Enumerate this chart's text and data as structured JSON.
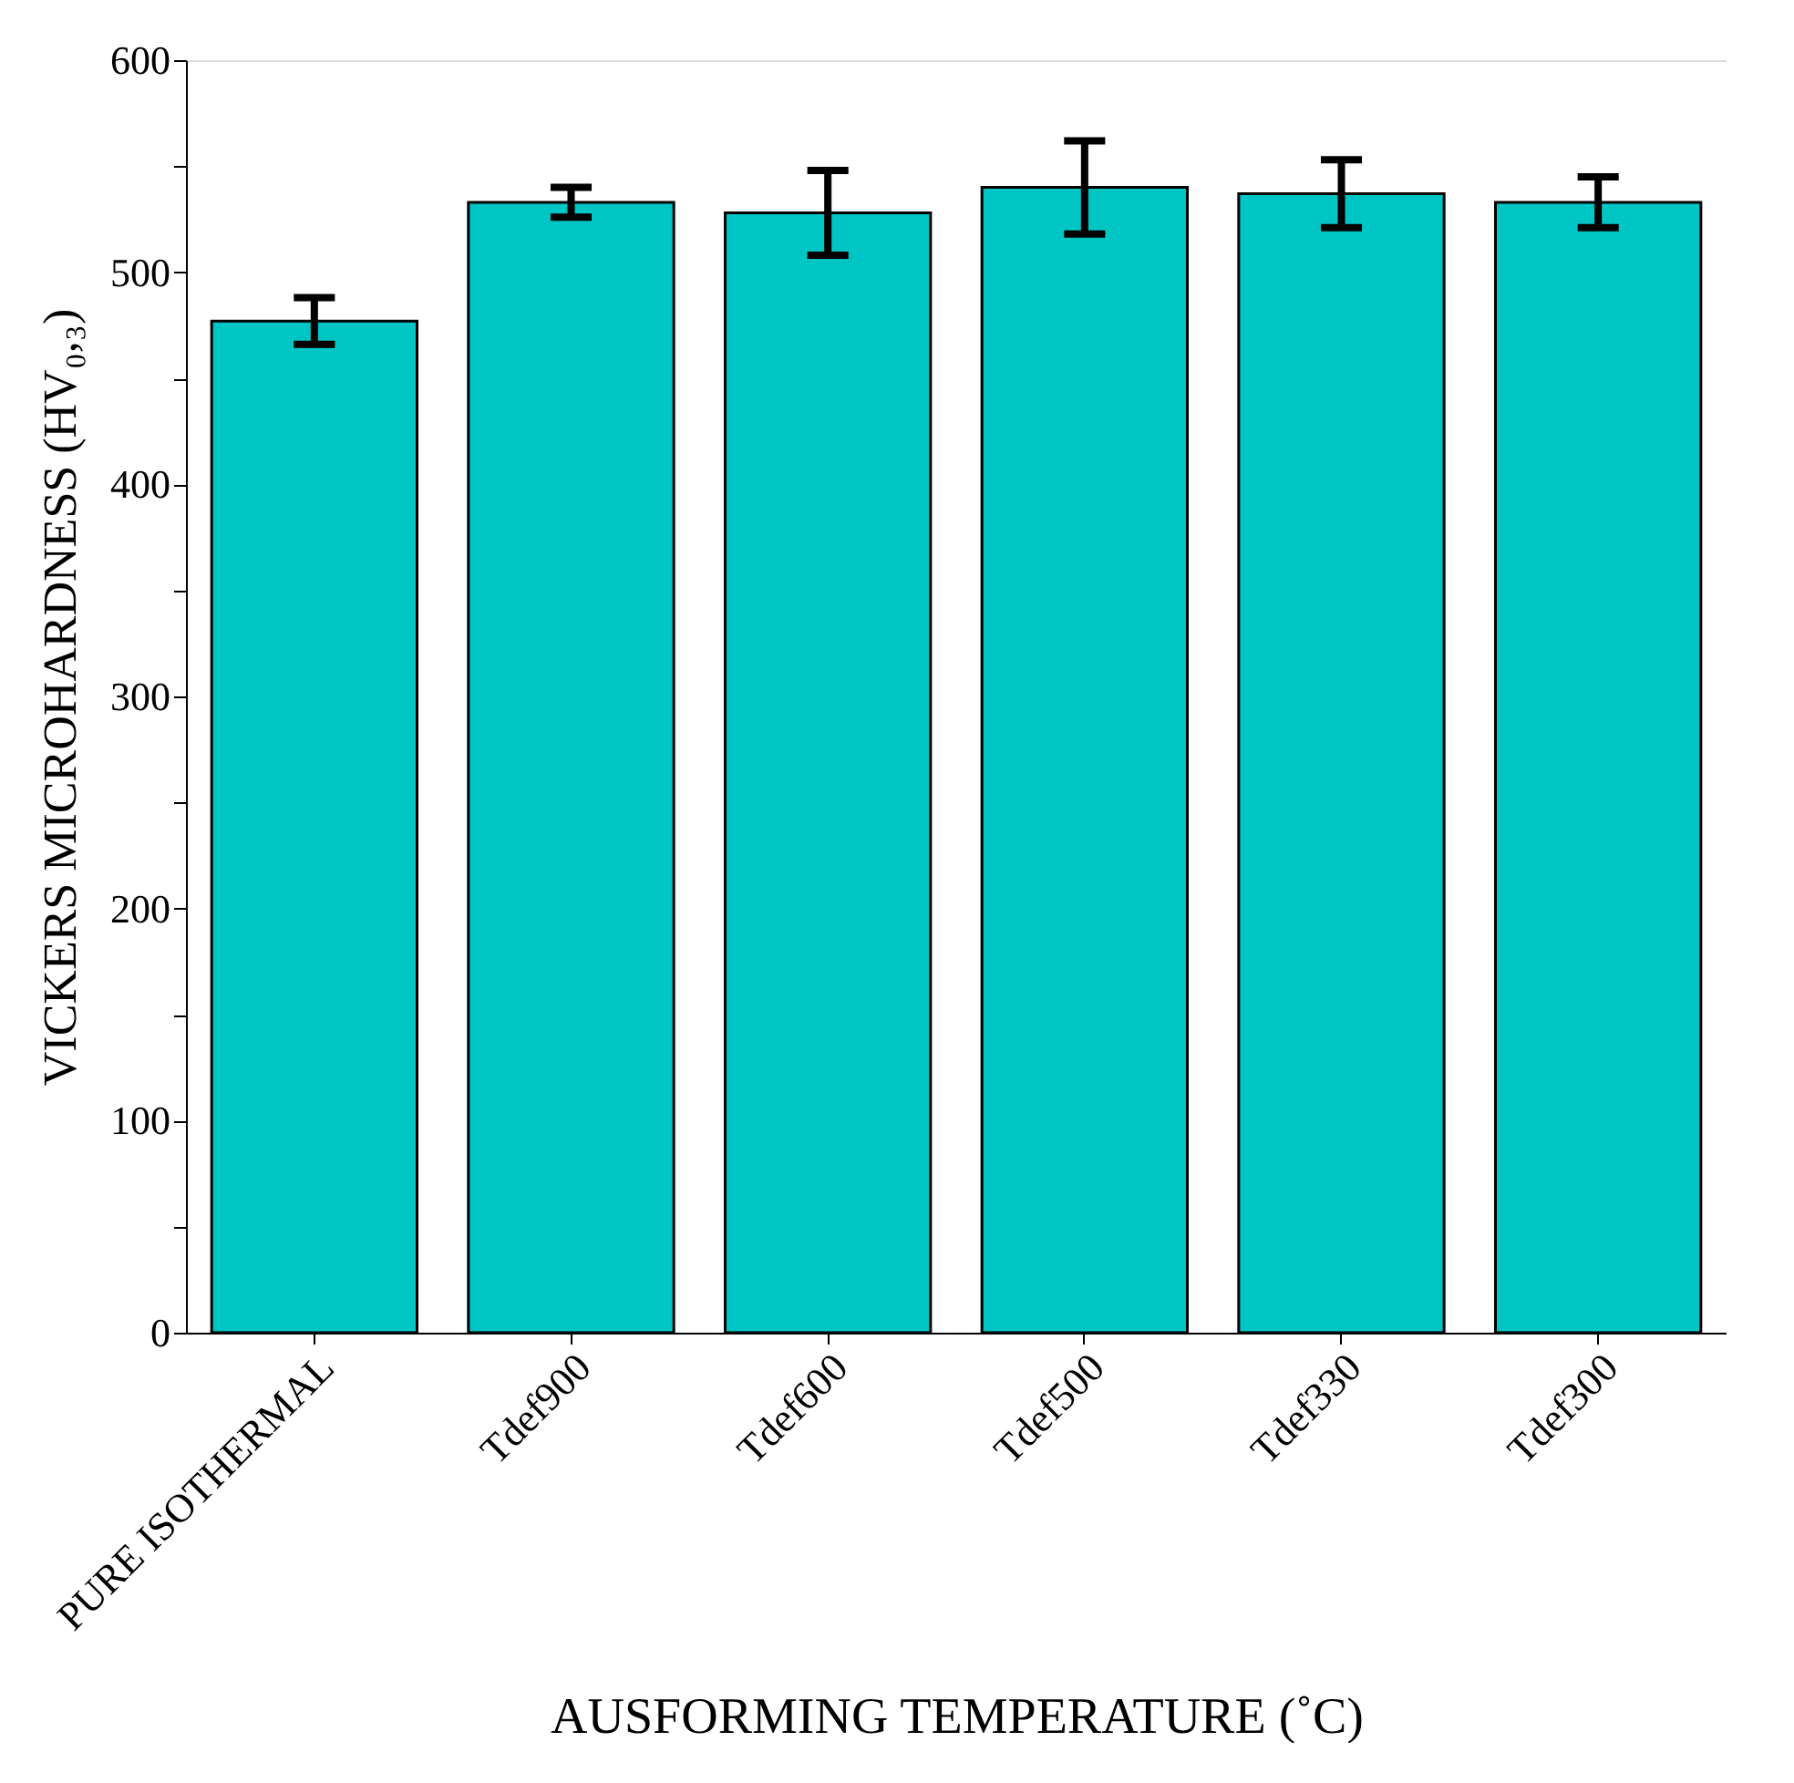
{
  "chart_data": {
    "type": "bar",
    "xlabel": "AUSFORMING TEMPERATURE (˚C)",
    "ylabel": "VICKERS MICROHARDNESS (HV₀,₃)",
    "categories": [
      "PURE ISOTHERMAL",
      "Tdef900",
      "Tdef600",
      "Tdef500",
      "Tdef330",
      "Tdef300"
    ],
    "values": [
      477,
      533,
      528,
      540,
      537,
      533
    ],
    "errors": [
      11,
      7,
      20,
      22,
      16,
      12
    ],
    "color": "#00c5c5",
    "ylim": [
      0,
      600
    ],
    "yticks": [
      0,
      {
        "value": 50,
        "label": null
      },
      100,
      {
        "value": 150,
        "label": null
      },
      200,
      {
        "value": 250,
        "label": null
      },
      300,
      {
        "value": 350,
        "label": null
      },
      400,
      {
        "value": 450,
        "label": null
      },
      500,
      {
        "value": 550,
        "label": null
      },
      600
    ],
    "grid": false
  }
}
